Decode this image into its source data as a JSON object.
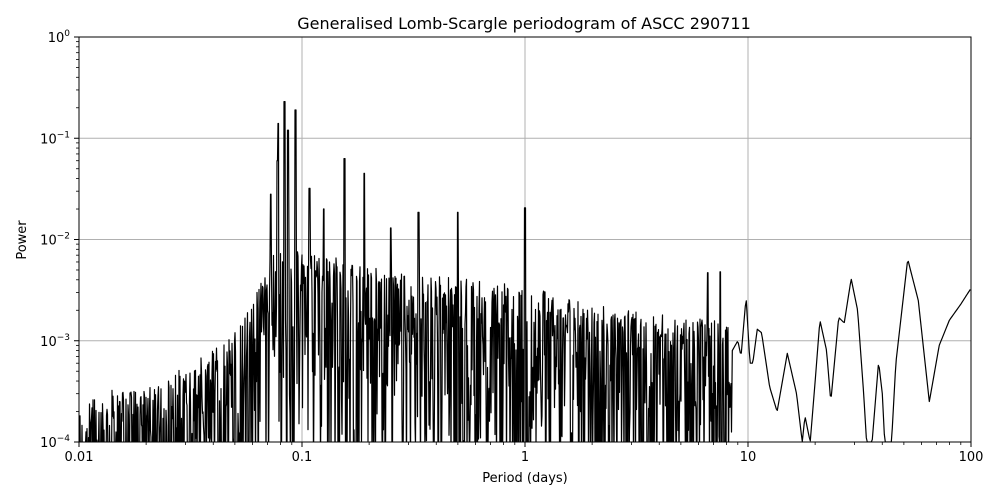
{
  "chart_data": {
    "type": "line",
    "title": "Generalised Lomb-Scargle periodogram of ASCC 290711",
    "xlabel": "Period (days)",
    "ylabel": "Power",
    "xscale": "log",
    "yscale": "log",
    "xlim": [
      0.01,
      100
    ],
    "ylim": [
      0.0001,
      1
    ],
    "grid": true,
    "legend": null,
    "line_color": "#000000",
    "grid_color": "#b0b0b0",
    "x_ticks": [
      {
        "value": 0.01,
        "label": "0.01"
      },
      {
        "value": 0.1,
        "label": "0.1"
      },
      {
        "value": 1,
        "label": "1"
      },
      {
        "value": 10,
        "label": "10"
      },
      {
        "value": 100,
        "label": "100"
      }
    ],
    "y_ticks": [
      {
        "value": 0.0001,
        "base": "10",
        "exp": "−4"
      },
      {
        "value": 0.001,
        "base": "10",
        "exp": "−3"
      },
      {
        "value": 0.01,
        "base": "10",
        "exp": "−2"
      },
      {
        "value": 0.1,
        "base": "10",
        "exp": "−1"
      },
      {
        "value": 1,
        "base": "10",
        "exp": "0"
      }
    ],
    "prominent_peaks": [
      {
        "period": 0.0835,
        "power": 0.23
      },
      {
        "period": 0.0865,
        "power": 0.12
      },
      {
        "period": 0.0935,
        "power": 0.19
      },
      {
        "period": 0.078,
        "power": 0.14
      },
      {
        "period": 0.0775,
        "power": 0.06
      },
      {
        "period": 0.0725,
        "power": 0.028
      },
      {
        "period": 0.108,
        "power": 0.032
      },
      {
        "period": 0.155,
        "power": 0.063
      },
      {
        "period": 0.125,
        "power": 0.02
      },
      {
        "period": 0.19,
        "power": 0.045
      },
      {
        "period": 0.25,
        "power": 0.013
      },
      {
        "period": 0.333,
        "power": 0.0185
      },
      {
        "period": 0.5,
        "power": 0.0185
      },
      {
        "period": 1.0,
        "power": 0.0205
      },
      {
        "period": 6.6,
        "power": 0.0047
      },
      {
        "period": 7.5,
        "power": 0.0048
      },
      {
        "period": 9.8,
        "power": 0.0027
      },
      {
        "period": 21.0,
        "power": 0.0016
      },
      {
        "period": 25.5,
        "power": 0.0017
      },
      {
        "period": 29.0,
        "power": 0.0041
      },
      {
        "period": 38.5,
        "power": 0.00062
      },
      {
        "period": 52.0,
        "power": 0.0064
      },
      {
        "period": 100.0,
        "power": 0.0033
      }
    ],
    "noise_envelope": [
      {
        "period": 0.01,
        "power": 0.00022
      },
      {
        "period": 0.02,
        "power": 0.00025
      },
      {
        "period": 0.03,
        "power": 0.0004
      },
      {
        "period": 0.045,
        "power": 0.0008
      },
      {
        "period": 0.06,
        "power": 0.0018
      },
      {
        "period": 0.075,
        "power": 0.006
      },
      {
        "period": 0.1,
        "power": 0.006
      },
      {
        "period": 0.2,
        "power": 0.004
      },
      {
        "period": 0.5,
        "power": 0.003
      },
      {
        "period": 1.0,
        "power": 0.0025
      },
      {
        "period": 3.0,
        "power": 0.0015
      },
      {
        "period": 8.0,
        "power": 0.0012
      }
    ],
    "smooth_tail": [
      [
        8.5,
        0.0008
      ],
      [
        9.0,
        0.001
      ],
      [
        9.3,
        0.0007
      ],
      [
        9.8,
        0.0027
      ],
      [
        10.2,
        0.0006
      ],
      [
        10.5,
        0.0006
      ],
      [
        11.0,
        0.0013
      ],
      [
        11.5,
        0.0012
      ],
      [
        12.5,
        0.00035
      ],
      [
        13.5,
        0.0002
      ],
      [
        15.0,
        0.00075
      ],
      [
        16.5,
        0.0003
      ],
      [
        17.5,
        0.0001
      ],
      [
        18.0,
        0.00018
      ],
      [
        19.0,
        0.0001
      ],
      [
        20.0,
        0.0004
      ],
      [
        21.0,
        0.0016
      ],
      [
        22.5,
        0.0008
      ],
      [
        23.5,
        0.00025
      ],
      [
        25.5,
        0.0017
      ],
      [
        27.0,
        0.0015
      ],
      [
        29.0,
        0.0041
      ],
      [
        31.0,
        0.002
      ],
      [
        33.0,
        0.0003
      ],
      [
        34.0,
        0.0001
      ],
      [
        36.0,
        0.0001
      ],
      [
        38.5,
        0.00062
      ],
      [
        40.0,
        0.0003
      ],
      [
        41.0,
        0.0001
      ],
      [
        44.0,
        0.0001
      ],
      [
        46.0,
        0.0006
      ],
      [
        52.0,
        0.0064
      ],
      [
        58.0,
        0.0025
      ],
      [
        65.0,
        0.00025
      ],
      [
        72.0,
        0.0009
      ],
      [
        80.0,
        0.0016
      ],
      [
        90.0,
        0.0023
      ],
      [
        100.0,
        0.0033
      ]
    ]
  }
}
